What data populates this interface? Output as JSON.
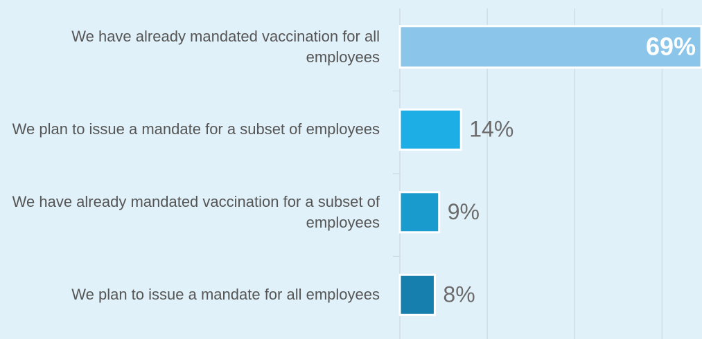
{
  "chart_data": {
    "type": "bar",
    "categories": [
      "We have already mandated vaccination for all employees",
      "We plan to issue a mandate for a subset of employees",
      "We have already mandated vaccination for a subset of employees",
      "We plan to issue a mandate for all employees"
    ],
    "values": [
      69,
      14,
      9,
      8
    ],
    "value_labels": [
      "69%",
      "14%",
      "9%",
      "8%"
    ],
    "colors": [
      "#8bc5ea",
      "#1eaee6",
      "#1a9bcd",
      "#167fae"
    ],
    "xlim": [
      0,
      69
    ],
    "xticks": [
      0,
      20,
      40,
      60
    ],
    "grid": true
  }
}
